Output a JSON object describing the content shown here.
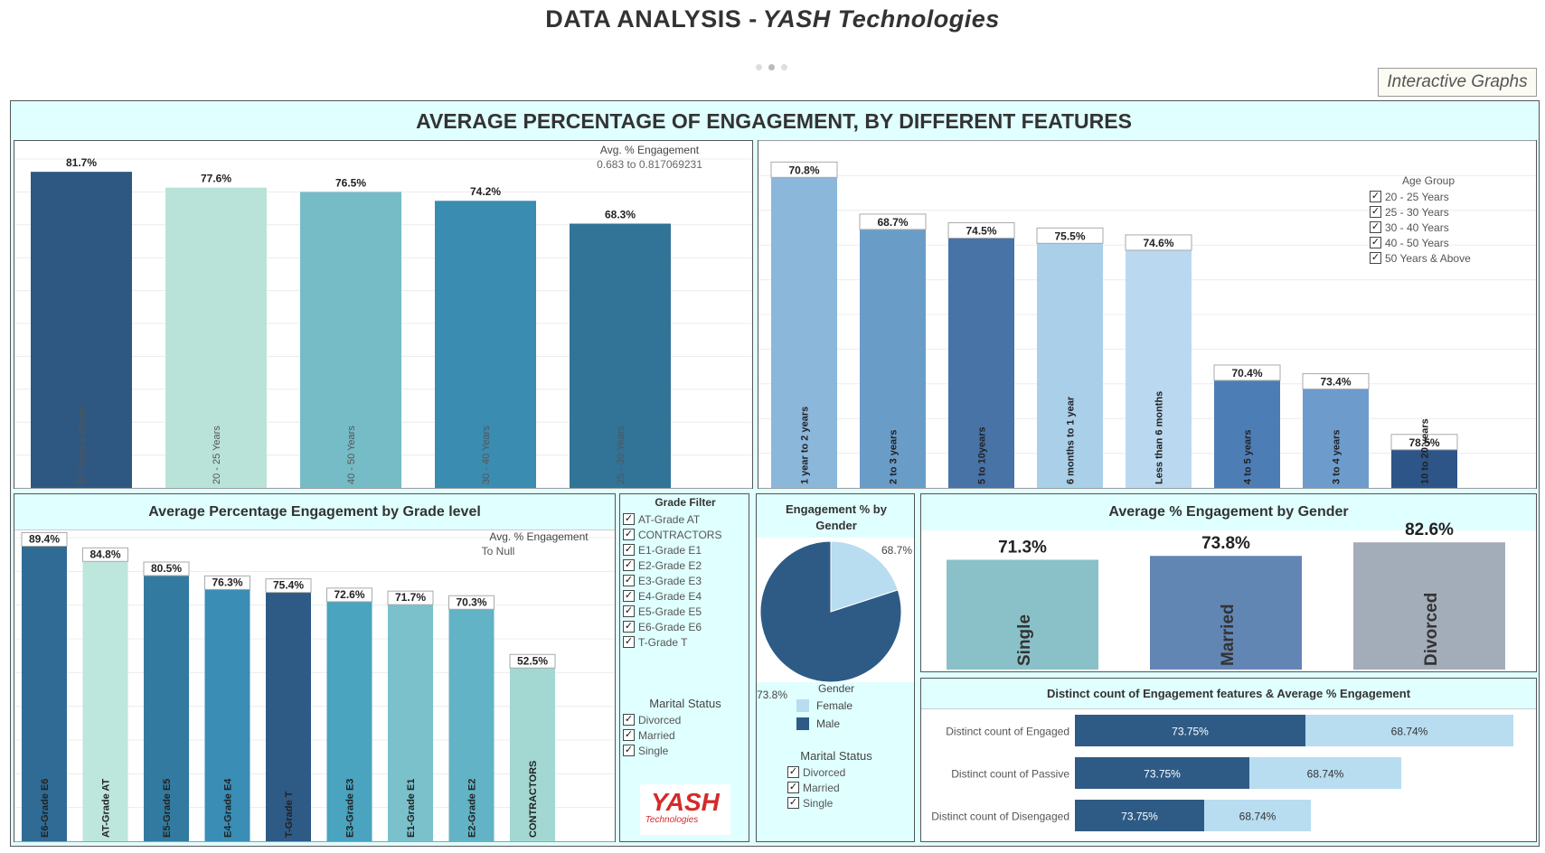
{
  "header": {
    "title_prefix": "DATA  ANALYSIS  -",
    "title_company": "YASH Technologies",
    "interactive_label": "Interactive Graphs"
  },
  "banner": "AVERAGE PERCENTAGE OF ENGAGEMENT, BY DIFFERENT FEATURES",
  "panels": {
    "age_legend": {
      "title": "Avg. % Engagement",
      "range": "0.683 to 0.817069231"
    },
    "tenure_filter": {
      "title": "Age Group",
      "items": [
        "20 - 25 Years",
        "25 - 30 Years",
        "30 - 40 Years",
        "40 - 50 Years",
        "50 Years & Above"
      ]
    },
    "grade": {
      "title": "Average Percentage Engagement by Grade level",
      "legend_title": "Avg. % Engagement",
      "legend_range": "To Null"
    },
    "grade_filter": {
      "title": "Grade Filter",
      "items": [
        "AT-Grade AT",
        "CONTRACTORS",
        "E1-Grade E1",
        "E2-Grade E2",
        "E3-Grade E3",
        "E4-Grade E4",
        "E5-Grade E5",
        "E6-Grade E6",
        "T-Grade T"
      ]
    },
    "marital_filter_1": {
      "title": "Marital Status",
      "items": [
        "Divorced",
        "Married",
        "Single"
      ]
    },
    "pie": {
      "title": "Engagement % by Gender",
      "legend_title": "Gender",
      "legend": [
        "Female",
        "Male"
      ]
    },
    "marital_filter_2": {
      "title": "Marital Status",
      "items": [
        "Divorced",
        "Married",
        "Single"
      ]
    },
    "marital": {
      "title": "Average % Engagement by Gender"
    },
    "distinct": {
      "title": "Distinct count of Engagement features & Average % Engagement"
    }
  },
  "logo": {
    "text": "YASH",
    "sub": "Technologies"
  },
  "chart_data": [
    {
      "id": "age",
      "type": "bar",
      "categories": [
        "50 Years & Above",
        "20 - 25 Years",
        "40 - 50 Years",
        "30 - 40 Years",
        "25 - 30 Years"
      ],
      "values": [
        81.7,
        77.6,
        76.5,
        74.2,
        68.3
      ],
      "labels": [
        "81.7%",
        "77.6%",
        "76.5%",
        "74.2%",
        "68.3%"
      ],
      "colors": [
        "#2e5882",
        "#b9e3d8",
        "#75bcc6",
        "#3a8cb1",
        "#327398"
      ],
      "ylim": [
        0,
        85
      ]
    },
    {
      "id": "tenure",
      "type": "bar",
      "categories": [
        "1 year to 2 years",
        "2 to 3 years",
        "5 to 10years",
        "6 months to 1 year",
        "Less than 6 months",
        "4 to 5 years",
        "3 to 4 years",
        "10 to 20 years"
      ],
      "values": [
        70.8,
        68.7,
        74.5,
        75.5,
        74.6,
        70.4,
        73.4,
        78.5
      ],
      "labels": [
        "70.8%",
        "68.7%",
        "74.5%",
        "75.5%",
        "74.6%",
        "70.4%",
        "73.4%",
        "78.5%"
      ],
      "heights": [
        0.895,
        0.745,
        0.72,
        0.705,
        0.685,
        0.31,
        0.285,
        0.11
      ],
      "colors": [
        "#8bb7db",
        "#6a9cc8",
        "#4773a7",
        "#a9cfe9",
        "#bad9f0",
        "#4d7db5",
        "#6d9ccc",
        "#2d5588"
      ]
    },
    {
      "id": "grade",
      "type": "bar",
      "categories": [
        "E6-Grade E6",
        "AT-Grade AT",
        "E5-Grade E5",
        "E4-Grade E4",
        "T-Grade T",
        "E3-Grade E3",
        "E1-Grade E1",
        "E2-Grade E2",
        "CONTRACTORS"
      ],
      "values": [
        89.4,
        84.8,
        80.5,
        76.3,
        75.4,
        72.6,
        71.7,
        70.3,
        52.5
      ],
      "labels": [
        "89.4%",
        "84.8%",
        "80.5%",
        "76.3%",
        "75.4%",
        "72.6%",
        "71.7%",
        "70.3%",
        "52.5%"
      ],
      "colors": [
        "#2f6b95",
        "#bde6dc",
        "#327aa0",
        "#3a8db5",
        "#2e5a86",
        "#4aa3bf",
        "#7ac1cc",
        "#62b3c6",
        "#a3d8d2"
      ],
      "ylim": [
        0,
        92
      ]
    },
    {
      "id": "gender",
      "type": "pie",
      "slices": [
        {
          "name": "Female",
          "value": 68.7,
          "label": "68.7%",
          "fraction": 0.2,
          "color": "#b8dcf0"
        },
        {
          "name": "Male",
          "value": 73.8,
          "label": "73.8%",
          "fraction": 0.8,
          "color": "#2e5b86"
        }
      ]
    },
    {
      "id": "marital",
      "type": "bar",
      "categories": [
        "Single",
        "Married",
        "Divorced"
      ],
      "values": [
        71.3,
        73.8,
        82.6
      ],
      "labels": [
        "71.3%",
        "73.8%",
        "82.6%"
      ],
      "colors": [
        "#8ac1c8",
        "#6286b4",
        "#a3adb9"
      ],
      "ylim": [
        0,
        88
      ]
    },
    {
      "id": "distinct",
      "type": "bar",
      "orientation": "horizontal",
      "stacked": true,
      "categories": [
        "Distinct count of Engaged",
        "Distinct count of Passive",
        "Distinct count of Disengaged"
      ],
      "series": [
        {
          "values": [
            73.75,
            73.75,
            73.75
          ],
          "labels": [
            "73.75%",
            "73.75%",
            "73.75%"
          ],
          "color": "#2e5b86"
        },
        {
          "values": [
            68.74,
            68.74,
            68.74
          ],
          "labels": [
            "68.74%",
            "68.74%",
            "68.74%"
          ],
          "color": "#b8dcf0"
        }
      ],
      "segment_lengths": [
        [
          255,
          230
        ],
        [
          193,
          168
        ],
        [
          143,
          118
        ]
      ]
    }
  ]
}
